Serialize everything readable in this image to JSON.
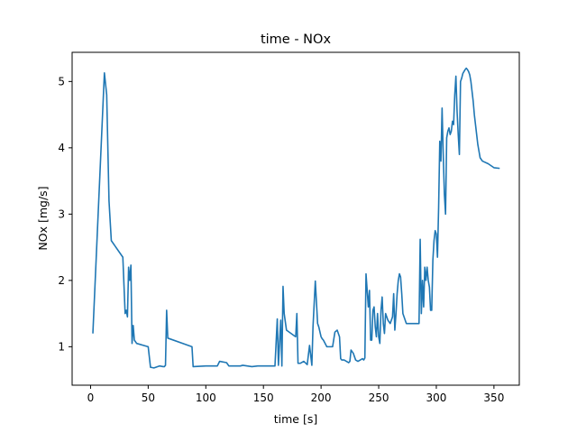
{
  "chart_data": {
    "type": "line",
    "title": "time - NOx",
    "xlabel": "time [s]",
    "ylabel": "NOx [mg/s]",
    "xlim": [
      -16,
      372
    ],
    "ylim": [
      0.42,
      5.44
    ],
    "xticks": [
      0,
      50,
      100,
      150,
      200,
      250,
      300,
      350
    ],
    "yticks": [
      1,
      2,
      3,
      4,
      5
    ],
    "xtick_labels": [
      "0",
      "50",
      "100",
      "150",
      "200",
      "250",
      "300",
      "350"
    ],
    "ytick_labels": [
      "1",
      "2",
      "3",
      "4",
      "5"
    ],
    "grid": false,
    "legend": "none",
    "color": "#1f77b4",
    "series": [
      {
        "x": [
          2,
          12,
          14,
          16,
          18,
          28,
          30,
          31,
          32,
          33,
          34,
          35,
          36,
          37,
          38,
          40,
          50,
          52,
          55,
          60,
          63,
          64,
          65,
          66,
          67,
          88,
          89,
          100,
          110,
          112,
          118,
          120,
          122,
          130,
          132,
          140,
          145,
          150,
          160,
          162,
          163,
          165,
          166,
          167,
          168,
          170,
          178,
          179,
          180,
          182,
          185,
          188,
          190,
          192,
          193,
          195,
          197,
          198,
          200,
          201,
          202,
          205,
          210,
          212,
          214,
          216,
          217,
          218,
          220,
          224,
          225,
          226,
          228,
          230,
          232,
          234,
          236,
          237,
          238,
          239,
          240,
          241,
          242,
          243,
          244,
          245,
          246,
          247,
          248,
          249,
          250,
          251,
          252,
          253,
          254,
          255,
          256,
          258,
          260,
          262,
          263,
          264,
          265,
          266,
          267,
          268,
          269,
          270,
          271,
          272,
          273,
          274,
          275,
          276,
          277,
          278,
          279,
          280,
          281,
          282,
          283,
          284,
          285,
          286,
          287,
          288,
          289,
          290,
          291,
          292,
          293,
          294,
          295,
          296,
          297,
          298,
          299,
          300,
          301,
          302,
          303,
          304,
          305,
          306,
          307,
          308,
          309,
          310,
          311,
          312,
          313,
          314,
          315,
          316,
          317,
          318,
          319,
          320,
          321,
          322,
          323,
          324,
          325,
          326,
          327,
          328,
          329,
          330,
          331,
          332,
          333,
          334,
          335,
          336,
          337,
          338,
          340,
          345,
          350,
          355
        ],
        "y": [
          1.2,
          5.13,
          4.8,
          3.2,
          2.6,
          2.35,
          1.5,
          1.55,
          1.45,
          2.2,
          2.0,
          2.23,
          1.05,
          1.32,
          1.1,
          1.05,
          1.0,
          0.69,
          0.68,
          0.71,
          0.7,
          0.7,
          0.72,
          1.55,
          1.13,
          1.0,
          0.7,
          0.71,
          0.71,
          0.78,
          0.76,
          0.71,
          0.71,
          0.71,
          0.72,
          0.7,
          0.71,
          0.71,
          0.71,
          1.42,
          0.72,
          1.4,
          0.71,
          1.91,
          1.5,
          1.25,
          1.15,
          1.5,
          0.75,
          0.75,
          0.78,
          0.73,
          1.02,
          0.72,
          1.3,
          1.99,
          1.35,
          1.3,
          1.15,
          1.12,
          1.1,
          1.0,
          1.0,
          1.22,
          1.25,
          1.15,
          0.82,
          0.8,
          0.8,
          0.76,
          0.78,
          0.95,
          0.9,
          0.8,
          0.78,
          0.8,
          0.82,
          0.8,
          0.83,
          2.1,
          1.85,
          1.6,
          1.85,
          1.1,
          1.1,
          1.55,
          1.6,
          1.3,
          1.15,
          1.5,
          1.15,
          1.05,
          1.55,
          1.75,
          1.35,
          1.2,
          1.5,
          1.4,
          1.35,
          1.45,
          1.8,
          1.25,
          1.5,
          1.8,
          2.0,
          2.1,
          2.05,
          1.8,
          1.5,
          1.45,
          1.4,
          1.35,
          1.35,
          1.35,
          1.35,
          1.35,
          1.35,
          1.35,
          1.35,
          1.35,
          1.35,
          1.35,
          1.35,
          2.62,
          1.5,
          2.0,
          1.6,
          2.2,
          2.0,
          2.2,
          2.0,
          1.9,
          1.55,
          1.55,
          2.3,
          2.6,
          2.75,
          2.7,
          2.35,
          3.1,
          4.1,
          3.8,
          4.6,
          3.9,
          3.3,
          3.0,
          4.15,
          4.25,
          4.3,
          4.2,
          4.25,
          4.4,
          4.35,
          4.8,
          5.08,
          4.55,
          4.2,
          3.9,
          5.0,
          5.05,
          5.12,
          5.15,
          5.18,
          5.2,
          5.18,
          5.15,
          5.1,
          5.0,
          4.85,
          4.7,
          4.5,
          4.35,
          4.2,
          4.05,
          3.95,
          3.85,
          3.8,
          3.76,
          3.7,
          3.69
        ]
      }
    ]
  }
}
